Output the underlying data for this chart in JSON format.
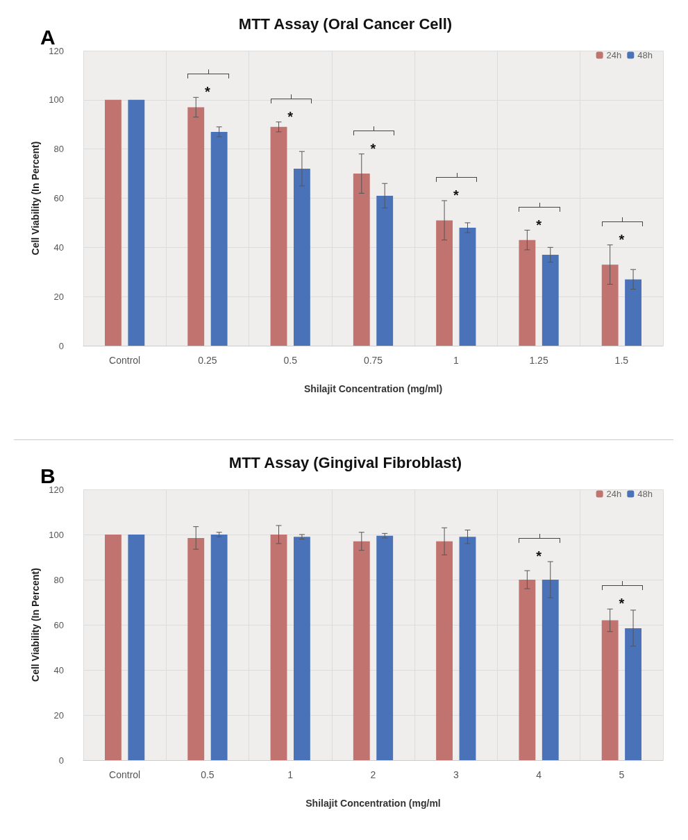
{
  "chart_data": [
    {
      "type": "bar",
      "title": "MTT Assay (Oral Cancer Cell)",
      "xlabel": "Shilajit Concentration (mg/ml)",
      "ylabel": "Cell Viability (In Percent)",
      "categories": [
        "Control",
        "0.25",
        "0.5",
        "0.75",
        "1",
        "1.25",
        "1.5"
      ],
      "series": [
        {
          "name": "24h",
          "color": "#c0736f",
          "values": [
            100,
            97,
            89,
            70,
            51,
            43,
            33
          ],
          "errors": [
            null,
            4,
            2,
            8,
            8,
            4,
            8
          ]
        },
        {
          "name": "48h",
          "color": "#4a72b8",
          "values": [
            100,
            87,
            72,
            61,
            48,
            37,
            27
          ],
          "errors": [
            null,
            2,
            7,
            5,
            2,
            3,
            4
          ]
        }
      ],
      "ylim": [
        0,
        120
      ],
      "yticks": [
        0,
        20,
        40,
        60,
        80,
        100,
        120
      ],
      "grid": true,
      "legend": "top right",
      "annotations": [
        "A",
        {
          "text": "*",
          "x": "0.25",
          "y": 97
        },
        {
          "text": "*",
          "x": "0.5",
          "y": 89
        },
        {
          "text": "*",
          "x": "0.75",
          "y": 70
        },
        {
          "text": "*",
          "x": "1",
          "y": 51
        },
        {
          "text": "*",
          "x": "1.25",
          "y": 43
        },
        {
          "text": "*",
          "x": "1.5",
          "y": 33
        }
      ]
    },
    {
      "type": "bar",
      "title": "MTT Assay (Gingival Fibroblast)",
      "xlabel": "Shilajit Concentration (mg/ml",
      "ylabel": "Cell Viability (In Percent)",
      "categories": [
        "Control",
        "0.5",
        "1",
        "2",
        "3",
        "4",
        "5"
      ],
      "series": [
        {
          "name": "24h",
          "color": "#c0736f",
          "values": [
            100,
            98.5,
            100,
            97,
            97,
            80,
            62
          ],
          "errors": [
            null,
            5,
            4,
            4,
            6,
            4,
            5
          ]
        },
        {
          "name": "48h",
          "color": "#4a72b8",
          "values": [
            100,
            100,
            99,
            99.5,
            99,
            80,
            58.5
          ],
          "errors": [
            null,
            1,
            1,
            1,
            3,
            8,
            8
          ]
        }
      ],
      "ylim": [
        0,
        120
      ],
      "yticks": [
        0,
        20,
        40,
        60,
        80,
        100,
        120
      ],
      "grid": true,
      "legend": "top right",
      "annotations": [
        "B",
        {
          "text": "*",
          "x": "4",
          "y": 80
        },
        {
          "text": "*",
          "x": "5",
          "y": 62
        }
      ]
    }
  ]
}
